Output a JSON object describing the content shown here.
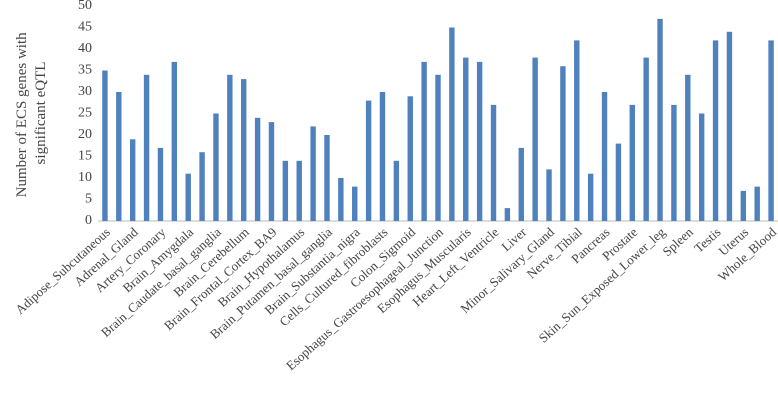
{
  "chart_data": {
    "type": "bar",
    "ylabel": [
      "Number of ECS genes with",
      "significant eQTL"
    ],
    "categories": [
      "Adipose_Subcutaneous",
      null,
      "Adrenal_Gland",
      null,
      "Artery_Coronary",
      null,
      "Brain_Amygdala",
      null,
      "Brain_Caudate_basal_ganglia",
      null,
      "Brain_Cerebellum",
      null,
      "Brain_Frontal_Cortex_BA9",
      null,
      "Brain_Hypothalamus",
      null,
      "Brain_Putamen_basal_ganglia",
      null,
      "Brain_Substantia_nigra",
      null,
      "Cells_Cultured_fibroblasts",
      null,
      "Colon_Sigmoid",
      null,
      "Esophagus_Gastroesophageal_Junction",
      null,
      "Esophagus_Muscularis",
      null,
      "Heart_Left_Ventricle",
      null,
      "Liver",
      null,
      "Minor_Salivary_Gland",
      null,
      "Nerve_Tibial",
      null,
      "Pancreas",
      null,
      "Prostate",
      null,
      "Skin_Sun_Exposed_Lower_leg",
      null,
      "Spleen",
      null,
      "Testis",
      null,
      "Uterus",
      null,
      "Whole_Blood"
    ],
    "values": [
      35,
      30,
      19,
      34,
      17,
      37,
      11,
      16,
      25,
      34,
      33,
      24,
      23,
      14,
      14,
      22,
      20,
      10,
      8,
      28,
      30,
      14,
      29,
      37,
      34,
      45,
      38,
      37,
      27,
      3,
      17,
      38,
      12,
      36,
      42,
      11,
      30,
      18,
      27,
      38,
      47,
      27,
      34,
      25,
      42,
      44,
      7,
      8,
      42
    ],
    "color": "#4f81bd",
    "ylim": [
      0,
      50
    ],
    "yticks": [
      0,
      5,
      10,
      15,
      20,
      25,
      30,
      35,
      40,
      45,
      50
    ]
  }
}
